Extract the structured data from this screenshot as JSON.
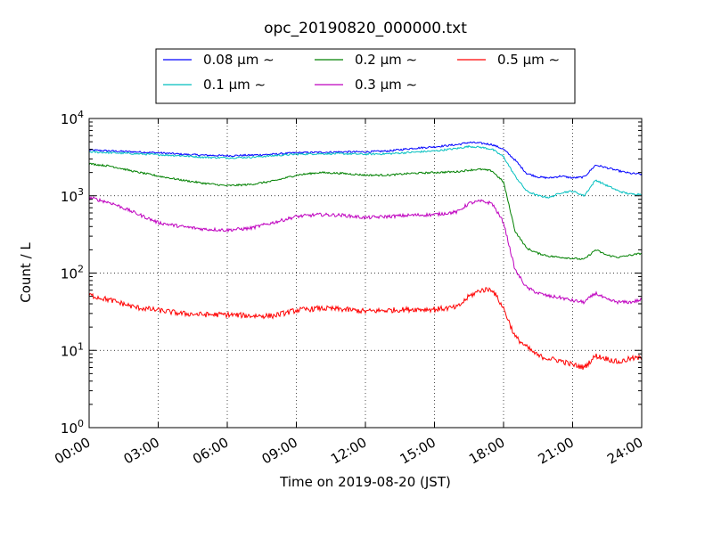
{
  "chart_data": {
    "type": "line",
    "title": "opc_20190820_000000.txt",
    "xlabel": "Time on 2019-08-20 (JST)",
    "ylabel": "Count / L",
    "x_range": [
      "00:00",
      "24:00"
    ],
    "y_range": [
      1,
      10000
    ],
    "y_scale": "log",
    "grid": true,
    "legend_position": "top-center",
    "x_ticks": [
      "00:00",
      "03:00",
      "06:00",
      "09:00",
      "12:00",
      "15:00",
      "18:00",
      "21:00",
      "24:00"
    ],
    "y_ticks": [
      {
        "base": "10",
        "exp": "0"
      },
      {
        "base": "10",
        "exp": "1"
      },
      {
        "base": "10",
        "exp": "2"
      },
      {
        "base": "10",
        "exp": "3"
      },
      {
        "base": "10",
        "exp": "4"
      }
    ],
    "x_hours": [
      0,
      1,
      2,
      3,
      4,
      5,
      6,
      7,
      8,
      9,
      10,
      11,
      12,
      13,
      14,
      15,
      16,
      16.5,
      17,
      17.5,
      18,
      18.5,
      19,
      19.5,
      20,
      20.5,
      21,
      21.5,
      22,
      22.5,
      23,
      23.5,
      24
    ],
    "series": [
      {
        "name": "0.08 μm ∼",
        "color": "#0000ff",
        "values": [
          3900,
          3800,
          3700,
          3600,
          3450,
          3350,
          3300,
          3350,
          3450,
          3600,
          3650,
          3700,
          3700,
          3800,
          4100,
          4300,
          4600,
          4900,
          4800,
          4600,
          4000,
          2900,
          1950,
          1750,
          1700,
          1800,
          1700,
          1750,
          2500,
          2300,
          2100,
          1950,
          1900
        ]
      },
      {
        "name": "0.1 μm ∼",
        "color": "#00bfbf",
        "values": [
          3700,
          3600,
          3500,
          3400,
          3300,
          3150,
          3100,
          3150,
          3300,
          3450,
          3500,
          3500,
          3450,
          3500,
          3650,
          3800,
          4100,
          4350,
          4250,
          4000,
          3200,
          1800,
          1150,
          1000,
          950,
          1100,
          1150,
          1000,
          1600,
          1350,
          1150,
          1050,
          1050
        ]
      },
      {
        "name": "0.2 μm ∼",
        "color": "#008000",
        "values": [
          2600,
          2400,
          2050,
          1800,
          1600,
          1450,
          1350,
          1400,
          1550,
          1850,
          2000,
          1950,
          1850,
          1850,
          1950,
          2000,
          2050,
          2150,
          2200,
          2100,
          1500,
          350,
          210,
          180,
          165,
          160,
          155,
          150,
          200,
          170,
          160,
          170,
          180
        ]
      },
      {
        "name": "0.3 μm ∼",
        "color": "#bf00bf",
        "values": [
          950,
          800,
          600,
          450,
          400,
          370,
          360,
          380,
          450,
          540,
          570,
          560,
          520,
          540,
          560,
          570,
          620,
          800,
          850,
          800,
          450,
          110,
          65,
          55,
          50,
          48,
          44,
          42,
          55,
          45,
          42,
          42,
          45
        ]
      },
      {
        "name": "0.5 μm ∼",
        "color": "#ff0000",
        "values": [
          52,
          44,
          36,
          33,
          30,
          29,
          29,
          28,
          28,
          33,
          35,
          34,
          32,
          33,
          34,
          34,
          36,
          50,
          60,
          62,
          35,
          15,
          11,
          8.5,
          7.8,
          7.3,
          6.5,
          6.0,
          8.5,
          7.8,
          7.0,
          7.8,
          8.0
        ]
      }
    ]
  }
}
